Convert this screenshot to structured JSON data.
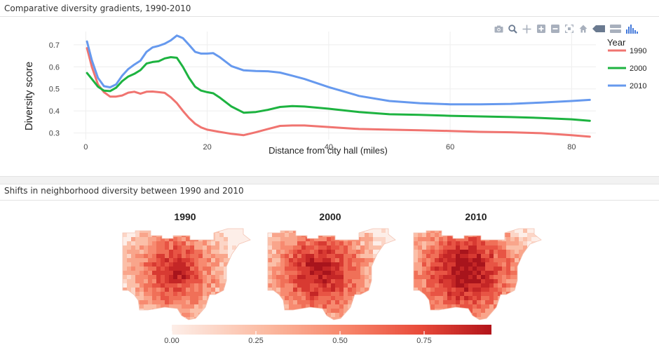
{
  "top_panel": {
    "title": "Comparative diversity gradients, 1990-2010"
  },
  "bottom_panel": {
    "title": "Shifts in neighborhood diversity between 1990 and 2010"
  },
  "modebar": [
    "camera-icon",
    "zoom-icon",
    "pan-icon",
    "zoom-in-icon",
    "zoom-out-icon",
    "autoscale-icon",
    "home-icon",
    "hover-closest-icon",
    "hover-compare-icon",
    "plotly-logo-icon"
  ],
  "chart_data": [
    {
      "type": "line",
      "title": "Comparative diversity gradients, 1990-2010",
      "xlabel": "Distance from city hall (miles)",
      "ylabel": "Diversity score",
      "xlim": [
        -2,
        84
      ],
      "ylim": [
        0.27,
        0.76
      ],
      "xticks": [
        0,
        20,
        40,
        60,
        80
      ],
      "yticks": [
        0.3,
        0.4,
        0.5,
        0.6,
        0.7
      ],
      "legend": {
        "title": "Year",
        "position": "right"
      },
      "series": [
        {
          "name": "1990",
          "color": "#f07470",
          "x": [
            0.2,
            1,
            2,
            3,
            4,
            5,
            6,
            7,
            8,
            9,
            10,
            11,
            12,
            13,
            14,
            15,
            16,
            17,
            18,
            19,
            20,
            22,
            24,
            26,
            28,
            30,
            32,
            34,
            36,
            40,
            45,
            50,
            55,
            60,
            65,
            70,
            75,
            80,
            83
          ],
          "y": [
            0.685,
            0.6,
            0.52,
            0.485,
            0.465,
            0.465,
            0.47,
            0.483,
            0.487,
            0.478,
            0.487,
            0.488,
            0.485,
            0.482,
            0.462,
            0.435,
            0.4,
            0.368,
            0.342,
            0.325,
            0.315,
            0.305,
            0.296,
            0.29,
            0.303,
            0.318,
            0.332,
            0.334,
            0.334,
            0.327,
            0.318,
            0.315,
            0.312,
            0.309,
            0.305,
            0.303,
            0.299,
            0.29,
            0.283
          ]
        },
        {
          "name": "2000",
          "color": "#1db340",
          "x": [
            0.2,
            1,
            2,
            3,
            4,
            5,
            6,
            7,
            8,
            9,
            10,
            11,
            12,
            13,
            14,
            15,
            16,
            17,
            18,
            19,
            20,
            21,
            22,
            24,
            26,
            28,
            30,
            32,
            34,
            36,
            40,
            45,
            50,
            55,
            60,
            65,
            70,
            75,
            80,
            83
          ],
          "y": [
            0.572,
            0.545,
            0.51,
            0.492,
            0.49,
            0.505,
            0.535,
            0.556,
            0.568,
            0.585,
            0.615,
            0.622,
            0.625,
            0.638,
            0.644,
            0.641,
            0.6,
            0.55,
            0.51,
            0.492,
            0.485,
            0.48,
            0.462,
            0.42,
            0.392,
            0.395,
            0.405,
            0.418,
            0.422,
            0.42,
            0.41,
            0.395,
            0.385,
            0.382,
            0.378,
            0.375,
            0.372,
            0.368,
            0.362,
            0.355
          ]
        },
        {
          "name": "2010",
          "color": "#6699ee",
          "x": [
            0.2,
            1,
            2,
            3,
            4,
            5,
            6,
            7,
            8,
            9,
            10,
            11,
            12,
            13,
            14,
            15,
            16,
            17,
            18,
            19,
            20,
            21,
            22,
            24,
            26,
            28,
            30,
            32,
            34,
            36,
            40,
            45,
            50,
            55,
            60,
            65,
            70,
            75,
            80,
            83
          ],
          "y": [
            0.715,
            0.63,
            0.55,
            0.512,
            0.507,
            0.52,
            0.56,
            0.59,
            0.61,
            0.628,
            0.668,
            0.688,
            0.695,
            0.705,
            0.72,
            0.742,
            0.73,
            0.7,
            0.668,
            0.66,
            0.66,
            0.662,
            0.645,
            0.603,
            0.584,
            0.581,
            0.58,
            0.574,
            0.56,
            0.545,
            0.508,
            0.468,
            0.445,
            0.435,
            0.43,
            0.43,
            0.432,
            0.438,
            0.445,
            0.45
          ]
        }
      ]
    },
    {
      "type": "heatmap",
      "title": "Shifts in neighborhood diversity between 1990 and 2010",
      "facets": [
        "1990",
        "2000",
        "2010"
      ],
      "colorbar": {
        "ticks": [
          "0.00",
          "0.25",
          "0.50",
          "0.75"
        ],
        "range": [
          0,
          0.95
        ],
        "low_color": "#fdeee8",
        "high_color": "#b2141a"
      }
    }
  ]
}
